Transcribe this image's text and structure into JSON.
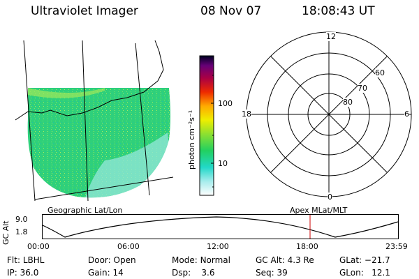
{
  "header": {
    "instrument": "Ultraviolet Imager",
    "date": "08 Nov 07",
    "time": "18:08:43 UT"
  },
  "map": {
    "caption": "Geographic Lat/Lon",
    "fill_color": "#2fd07a"
  },
  "colorbar": {
    "unit_label": "photon cm⁻²s⁻¹",
    "tick_labels": [
      "100",
      "10"
    ],
    "scale": "log"
  },
  "polar": {
    "caption": "Apex MLat/MLT",
    "mlt_labels": {
      "top": "12",
      "right": "6",
      "bottom": "0",
      "left": "18"
    },
    "lat_labels": [
      "60",
      "70",
      "80"
    ]
  },
  "altitude": {
    "axis_label": "GC Alt",
    "y_ticks": [
      "9.0",
      "1.8"
    ],
    "x_ticks": [
      "00:00",
      "06:00",
      "12:00",
      "18:00",
      "23:59"
    ],
    "marker_time": "18:08",
    "marker_color": "#cc0000"
  },
  "status": {
    "flt": {
      "label": "Flt:",
      "value": "LBHL"
    },
    "ip": {
      "label": "IP:",
      "value": "36.0"
    },
    "door": {
      "label": "Door:",
      "value": "Open"
    },
    "gain": {
      "label": "Gain:",
      "value": "14"
    },
    "mode": {
      "label": "Mode:",
      "value": "Normal"
    },
    "dsp": {
      "label": "Dsp:",
      "value": "3.6"
    },
    "gcalt": {
      "label": "GC Alt:",
      "value": "4.3 Re"
    },
    "seq": {
      "label": "Seq:",
      "value": "39"
    },
    "glat": {
      "label": "GLat:",
      "value": "−21.7"
    },
    "glon": {
      "label": "GLon:",
      "value": "12.1"
    }
  }
}
